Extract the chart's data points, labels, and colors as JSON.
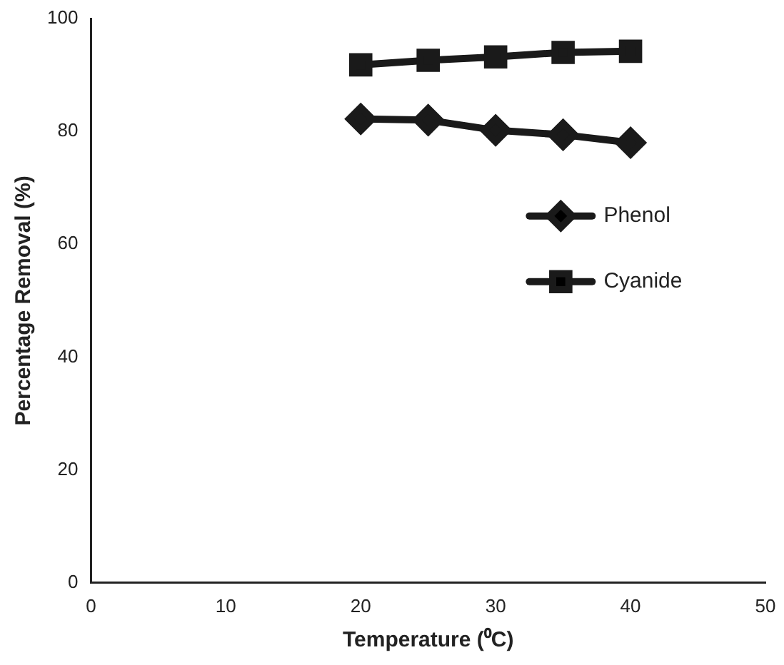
{
  "chart_data": {
    "type": "line",
    "xlabel": "Temperature (⁰C)",
    "ylabel": "Percentage Removal (%)",
    "x": [
      20,
      25,
      30,
      35,
      40
    ],
    "series": [
      {
        "name": "Phenol",
        "color": "#1a1a1a",
        "marker": "diamond",
        "values": [
          82.2,
          82.0,
          80.2,
          79.4,
          78.0
        ]
      },
      {
        "name": "Cyanide",
        "color": "#1a1a1a",
        "marker": "square",
        "values": [
          91.8,
          92.6,
          93.2,
          94.0,
          94.2
        ]
      }
    ],
    "xlim": [
      0,
      50
    ],
    "xticks": [
      0,
      10,
      20,
      30,
      40,
      50
    ],
    "ylim": [
      0,
      100
    ],
    "yticks": [
      0,
      20,
      40,
      60,
      80,
      100
    ],
    "grid": false,
    "legend": "right",
    "line_style": "solid"
  }
}
